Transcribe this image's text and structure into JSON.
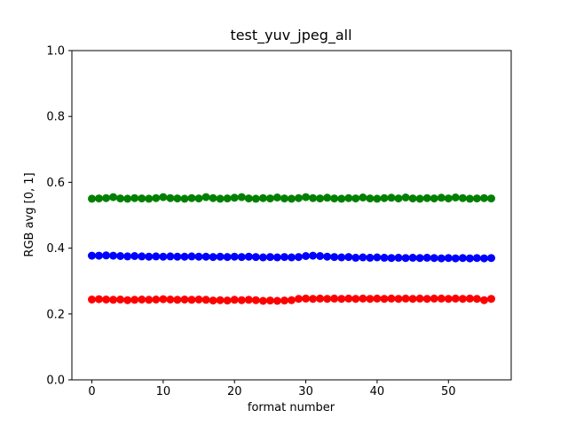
{
  "figure": {
    "background_color": "#ffffff",
    "plot_background_color": "#ffffff",
    "spine_color": "#000000"
  },
  "chart_data": {
    "type": "scatter",
    "title": "test_yuv_jpeg_all",
    "xlabel": "format number",
    "ylabel": "RGB avg [0, 1]",
    "xlim": [
      -2.8,
      58.8
    ],
    "ylim": [
      0.0,
      1.0
    ],
    "grid": false,
    "legend": "none",
    "marker": {
      "shape": "circle",
      "radius_px": 4.5
    },
    "x_ticks": [
      {
        "value": 0,
        "label": "0"
      },
      {
        "value": 10,
        "label": "10"
      },
      {
        "value": 20,
        "label": "20"
      },
      {
        "value": 30,
        "label": "30"
      },
      {
        "value": 40,
        "label": "40"
      },
      {
        "value": 50,
        "label": "50"
      }
    ],
    "y_ticks": [
      {
        "value": 0.0,
        "label": "0.0"
      },
      {
        "value": 0.2,
        "label": "0.2"
      },
      {
        "value": 0.4,
        "label": "0.4"
      },
      {
        "value": 0.6,
        "label": "0.6"
      },
      {
        "value": 0.8,
        "label": "0.8"
      },
      {
        "value": 1.0,
        "label": "1.0"
      }
    ],
    "x": [
      0,
      1,
      2,
      3,
      4,
      5,
      6,
      7,
      8,
      9,
      10,
      11,
      12,
      13,
      14,
      15,
      16,
      17,
      18,
      19,
      20,
      21,
      22,
      23,
      24,
      25,
      26,
      27,
      28,
      29,
      30,
      31,
      32,
      33,
      34,
      35,
      36,
      37,
      38,
      39,
      40,
      41,
      42,
      43,
      44,
      45,
      46,
      47,
      48,
      49,
      50,
      51,
      52,
      53,
      54,
      55,
      56
    ],
    "series": [
      {
        "name": "green",
        "color": "#008000",
        "values": [
          0.55,
          0.551,
          0.552,
          0.555,
          0.551,
          0.55,
          0.552,
          0.551,
          0.55,
          0.552,
          0.555,
          0.552,
          0.551,
          0.55,
          0.552,
          0.551,
          0.555,
          0.552,
          0.55,
          0.551,
          0.553,
          0.555,
          0.551,
          0.55,
          0.552,
          0.551,
          0.554,
          0.551,
          0.55,
          0.552,
          0.555,
          0.552,
          0.551,
          0.553,
          0.551,
          0.55,
          0.552,
          0.551,
          0.554,
          0.551,
          0.55,
          0.552,
          0.553,
          0.551,
          0.554,
          0.551,
          0.55,
          0.552,
          0.551,
          0.553,
          0.551,
          0.554,
          0.552,
          0.55,
          0.551,
          0.552,
          0.551
        ]
      },
      {
        "name": "blue",
        "color": "#0000ff",
        "values": [
          0.377,
          0.377,
          0.378,
          0.377,
          0.376,
          0.375,
          0.376,
          0.375,
          0.374,
          0.375,
          0.374,
          0.375,
          0.374,
          0.374,
          0.375,
          0.374,
          0.374,
          0.373,
          0.374,
          0.373,
          0.374,
          0.373,
          0.374,
          0.373,
          0.372,
          0.373,
          0.372,
          0.373,
          0.372,
          0.373,
          0.376,
          0.377,
          0.376,
          0.374,
          0.373,
          0.372,
          0.373,
          0.371,
          0.372,
          0.371,
          0.372,
          0.371,
          0.37,
          0.371,
          0.37,
          0.371,
          0.37,
          0.371,
          0.37,
          0.369,
          0.37,
          0.369,
          0.37,
          0.369,
          0.37,
          0.369,
          0.37
        ]
      },
      {
        "name": "red",
        "color": "#ff0000",
        "values": [
          0.244,
          0.245,
          0.244,
          0.243,
          0.244,
          0.242,
          0.243,
          0.244,
          0.243,
          0.244,
          0.245,
          0.244,
          0.243,
          0.244,
          0.243,
          0.244,
          0.243,
          0.241,
          0.242,
          0.241,
          0.243,
          0.242,
          0.243,
          0.242,
          0.24,
          0.241,
          0.24,
          0.241,
          0.242,
          0.246,
          0.247,
          0.246,
          0.247,
          0.246,
          0.247,
          0.246,
          0.247,
          0.246,
          0.247,
          0.246,
          0.247,
          0.246,
          0.247,
          0.246,
          0.247,
          0.246,
          0.247,
          0.246,
          0.247,
          0.247,
          0.246,
          0.247,
          0.246,
          0.247,
          0.246,
          0.242,
          0.246
        ]
      }
    ]
  }
}
